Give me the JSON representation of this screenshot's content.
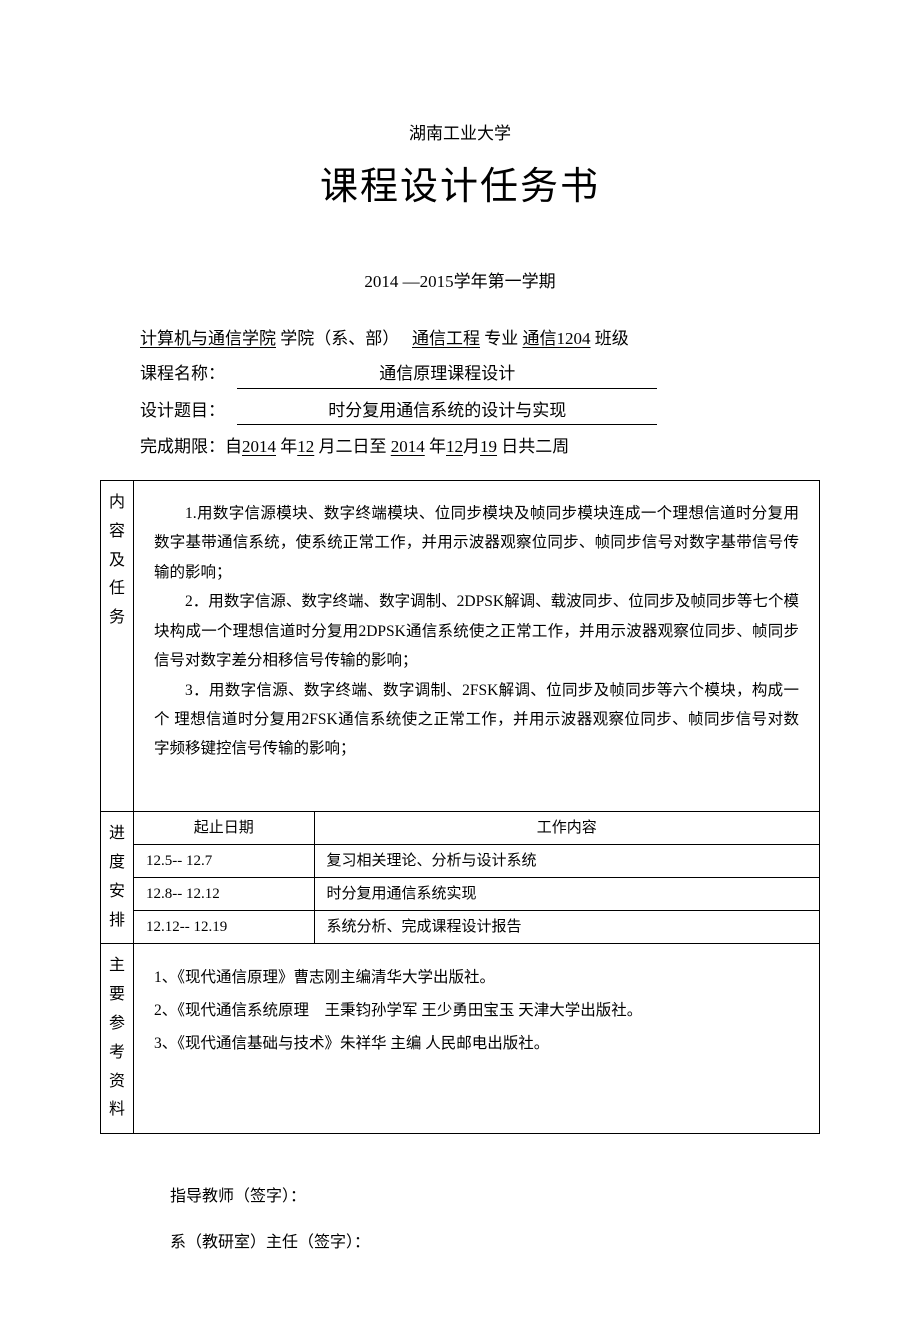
{
  "university": "湖南工业大学",
  "title": "课程设计任务书",
  "semester": "2014 —2015学年第一学期",
  "header": {
    "college": "计算机与通信学院",
    "college_label": "学院（系、部）",
    "major": "通信工程",
    "major_label": "专业",
    "class": "通信1204",
    "class_label": "班级",
    "course_label": "课程名称：",
    "course_name": "通信原理课程设计",
    "topic_label": "设计题目：",
    "topic_name": "时分复用通信系统的设计与实现",
    "deadline_prefix": "完成期限：自",
    "year1": "2014",
    "year_char": "年",
    "month1": "12",
    "month_char": "月二日至",
    "year2": "2014",
    "month2": "12",
    "month_char2": "月",
    "day2": "19",
    "day_char": "日共二周"
  },
  "section_labels": {
    "tasks": "内容及任务",
    "schedule": "进度安排",
    "refs": "主要参考资料"
  },
  "tasks": [
    "1.用数字信源模块、数字终端模块、位同步模块及帧同步模块连成一个理想信道时分复用数字基带通信系统，使系统正常工作，并用示波器观察位同步、帧同步信号对数字基带信号传输的影响；",
    "2．用数字信源、数字终端、数字调制、2DPSK解调、载波同步、位同步及帧同步等七个模块构成一个理想信道时分复用2DPSK通信系统使之正常工作，并用示波器观察位同步、帧同步信号对数字差分相移信号传输的影响；",
    "3．用数字信源、数字终端、数字调制、2FSK解调、位同步及帧同步等六个模块，构成一个 理想信道时分复用2FSK通信系统使之正常工作，并用示波器观察位同步、帧同步信号对数 字频移键控信号传输的影响；"
  ],
  "schedule": {
    "col_date": "起止日期",
    "col_work": "工作内容",
    "rows": [
      {
        "date": "12.5-- 12.7",
        "work": "复习相关理论、分析与设计系统"
      },
      {
        "date": "12.8-- 12.12",
        "work": "时分复用通信系统实现"
      },
      {
        "date": "12.12-- 12.19",
        "work": "系统分析、完成课程设计报告"
      }
    ]
  },
  "references": [
    "1、《现代通信原理》曹志刚主编清华大学出版社。",
    "2、《现代通信系统原理　王秉钧孙学军 王少勇田宝玉 天津大学出版社。",
    "3、《现代通信基础与技术》朱祥华 主编 人民邮电出版社。"
  ],
  "signatures": {
    "teacher": "指导教师（签字）：",
    "director": "系（教研室）主任（签字）："
  }
}
